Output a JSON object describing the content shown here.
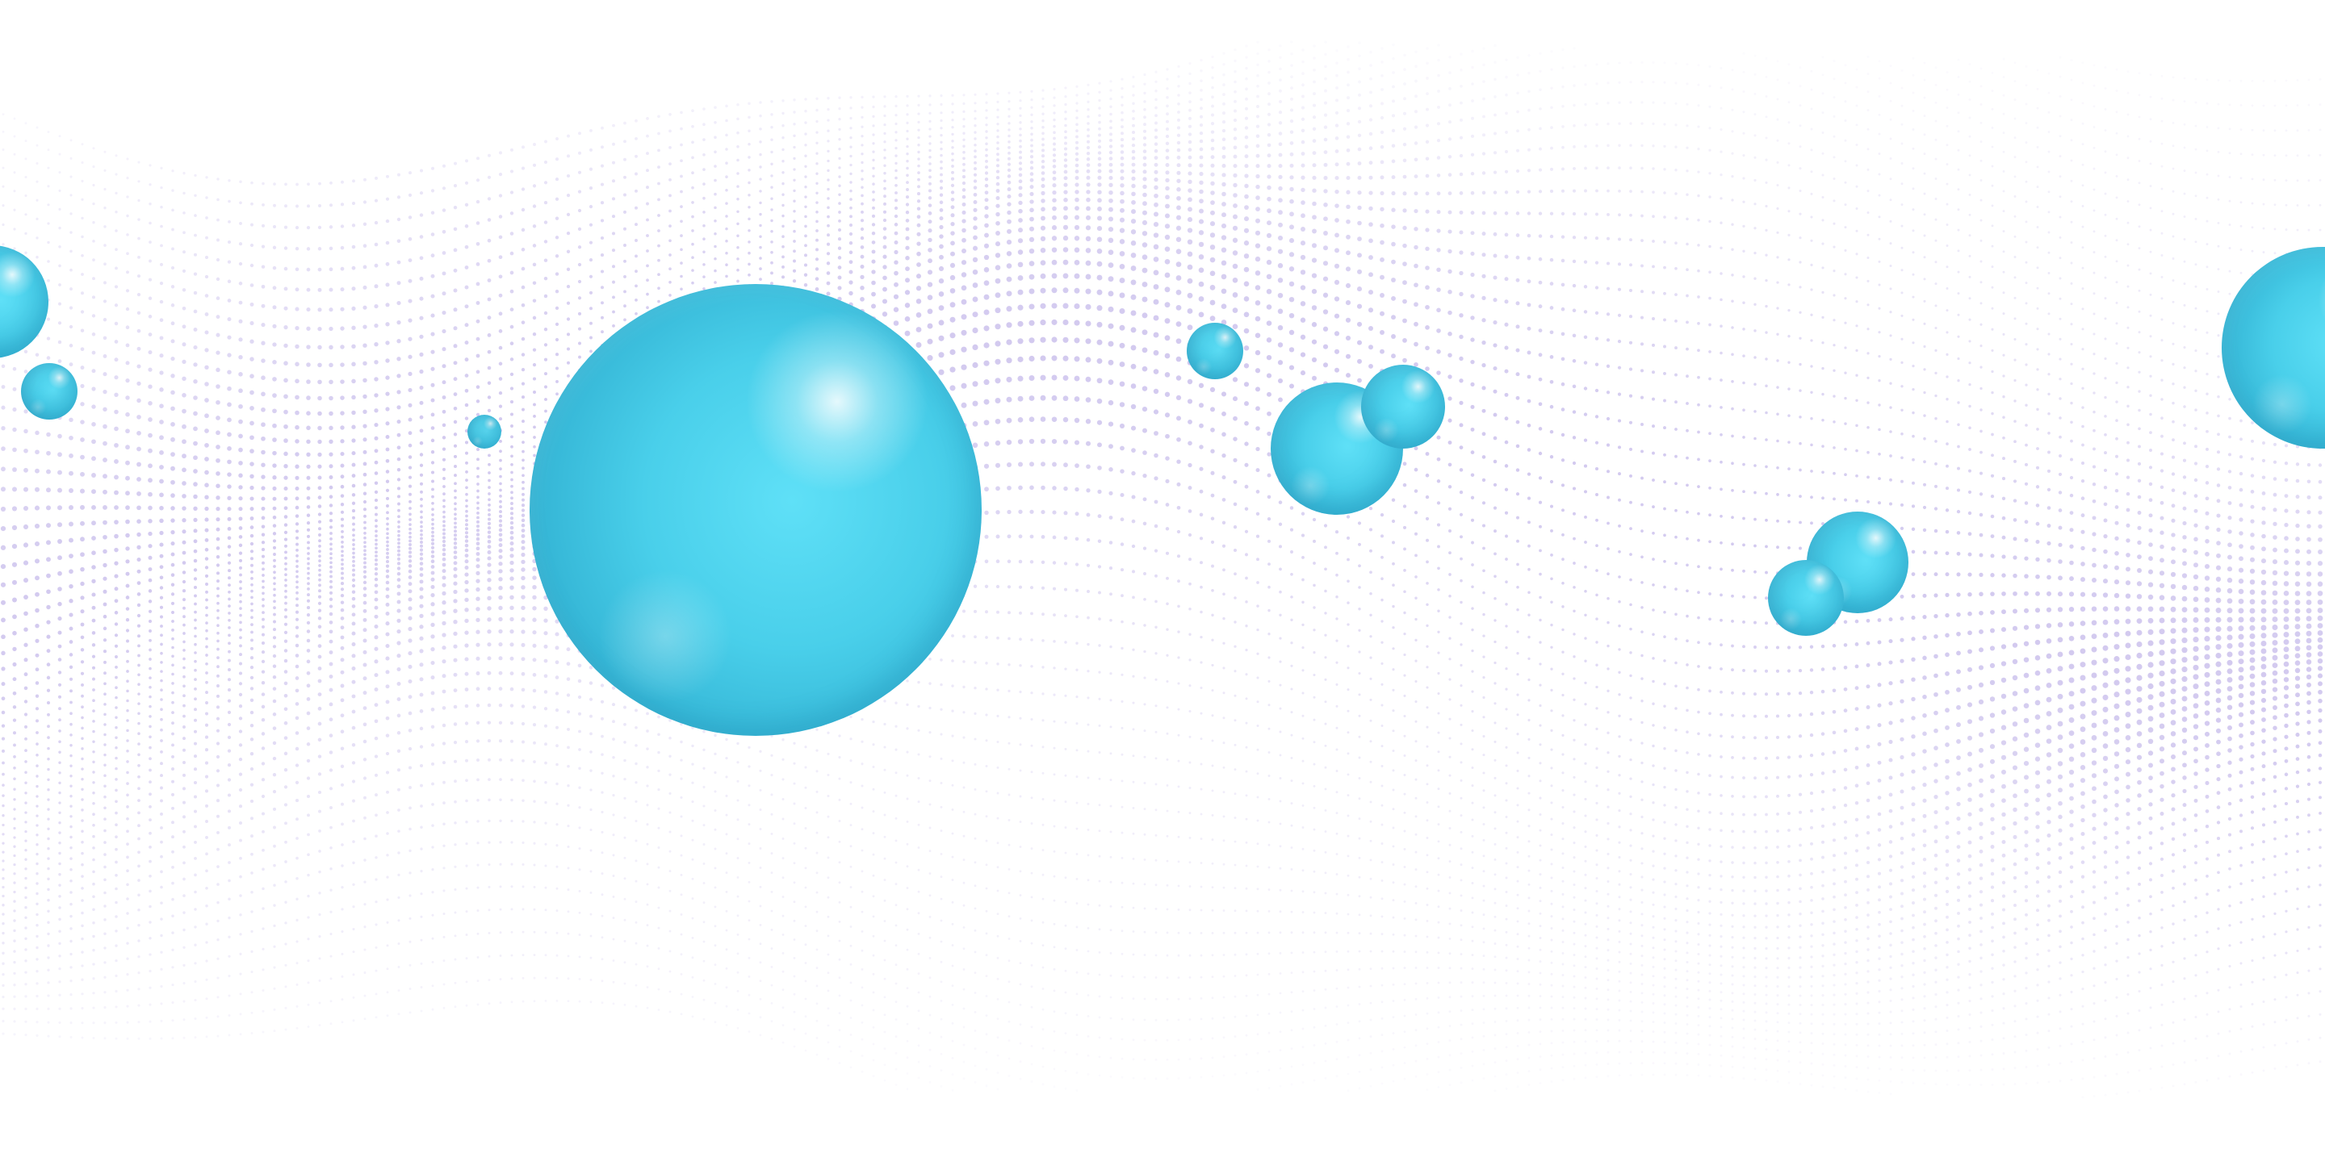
{
  "scene": {
    "background_color": "#ffffff",
    "wave_color": "#b9abe6",
    "sphere_color": "#49cfea",
    "sphere_shadow_color": "#2aa4c6",
    "sphere_count": 12
  }
}
